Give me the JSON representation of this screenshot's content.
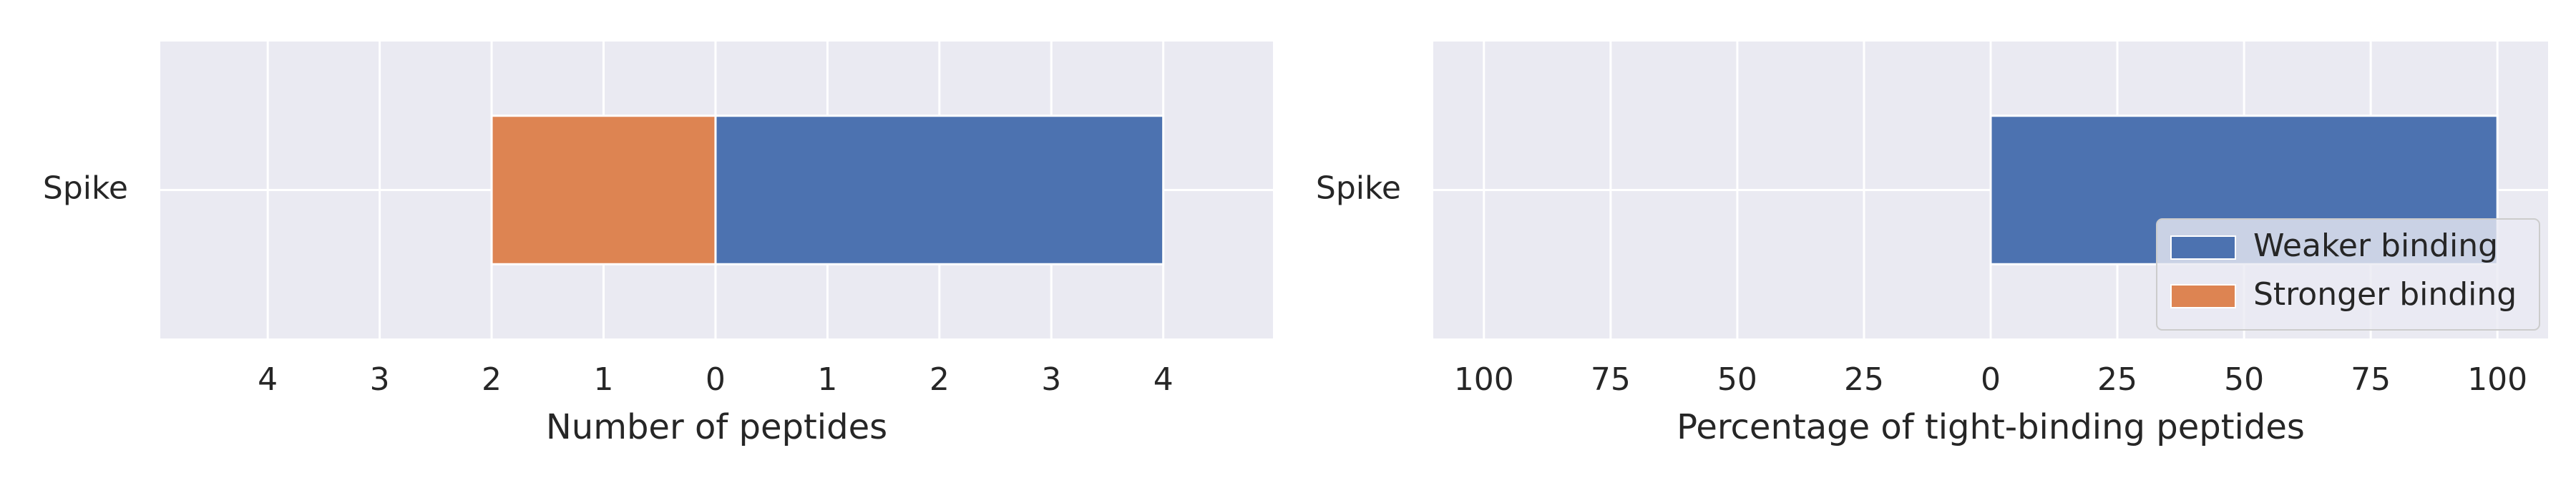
{
  "chart_data": [
    {
      "type": "bar",
      "orientation": "horizontal",
      "categories": [
        "Spike"
      ],
      "xlabel": "Number of peptides",
      "series": [
        {
          "name": "Weaker binding",
          "color": "#4c72b0",
          "values": [
            4
          ],
          "side": "positive"
        },
        {
          "name": "Stronger binding",
          "color": "#dd8452",
          "values": [
            2
          ],
          "side": "negative"
        }
      ],
      "xlim": [
        -4.96,
        4.98
      ],
      "xticks": [
        {
          "value": -4,
          "label": "4"
        },
        {
          "value": -3,
          "label": "3"
        },
        {
          "value": -2,
          "label": "2"
        },
        {
          "value": -1,
          "label": "1"
        },
        0,
        1,
        2,
        3,
        4
      ],
      "grid": true
    },
    {
      "type": "bar",
      "orientation": "horizontal",
      "categories": [
        "Spike"
      ],
      "xlabel": "Percentage of tight-binding peptides",
      "series": [
        {
          "name": "Weaker binding",
          "color": "#4c72b0",
          "values": [
            100
          ],
          "side": "positive"
        },
        {
          "name": "Stronger binding",
          "color": "#dd8452",
          "values": [
            0
          ],
          "side": "negative"
        }
      ],
      "xlim": [
        -110,
        110
      ],
      "xticks": [
        {
          "value": -100,
          "label": "100"
        },
        {
          "value": -75,
          "label": "75"
        },
        {
          "value": -50,
          "label": "50"
        },
        {
          "value": -25,
          "label": "25"
        },
        0,
        25,
        50,
        75,
        100
      ],
      "grid": true,
      "legend": "lower right"
    }
  ]
}
